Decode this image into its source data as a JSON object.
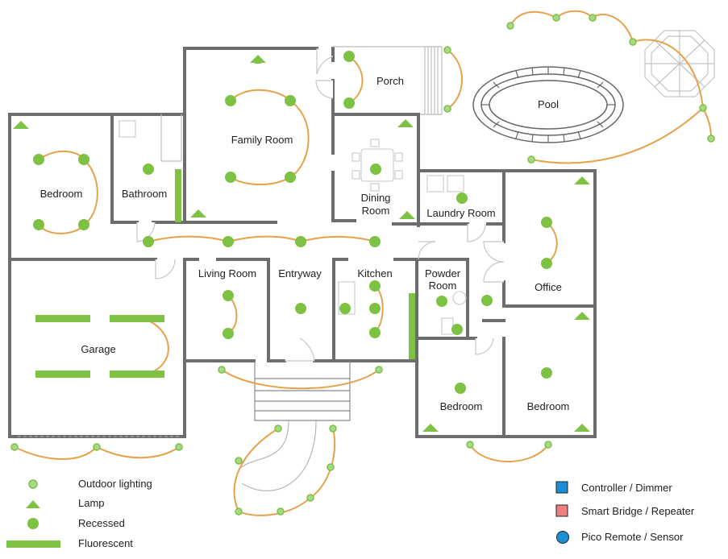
{
  "rooms": {
    "porch": "Porch",
    "pool": "Pool",
    "family_room": "Family Room",
    "bedroom_left": "Bedroom",
    "bathroom": "Bathroom",
    "dining_room_line1": "Dining",
    "dining_room_line2": "Room",
    "laundry_room": "Laundry Room",
    "garage": "Garage",
    "living_room": "Living Room",
    "entryway": "Entryway",
    "kitchen": "Kitchen",
    "powder_room_line1": "Powder",
    "powder_room_line2": "Room",
    "office": "Office",
    "bedroom_mid": "Bedroom",
    "bedroom_right": "Bedroom"
  },
  "legend_left": [
    {
      "label": "Outdoor lighting",
      "icon": "outdoor-light-icon"
    },
    {
      "label": "Lamp",
      "icon": "lamp-icon"
    },
    {
      "label": "Recessed",
      "icon": "recessed-light-icon"
    },
    {
      "label": "Fluorescent",
      "icon": "fluorescent-light-icon"
    }
  ],
  "legend_right": [
    {
      "label": "Controller / Dimmer",
      "icon": "controller-dimmer-icon",
      "color": "#1a8fd6"
    },
    {
      "label": "Smart Bridge / Repeater",
      "icon": "smart-bridge-icon",
      "color": "#f08080"
    },
    {
      "label": "Pico Remote / Sensor",
      "icon": "pico-remote-icon",
      "color": "#1a8fd6"
    }
  ],
  "colors": {
    "light_green": "#7dc242",
    "wire_orange": "#e6a24a",
    "wall_gray": "#6d6d6d"
  }
}
